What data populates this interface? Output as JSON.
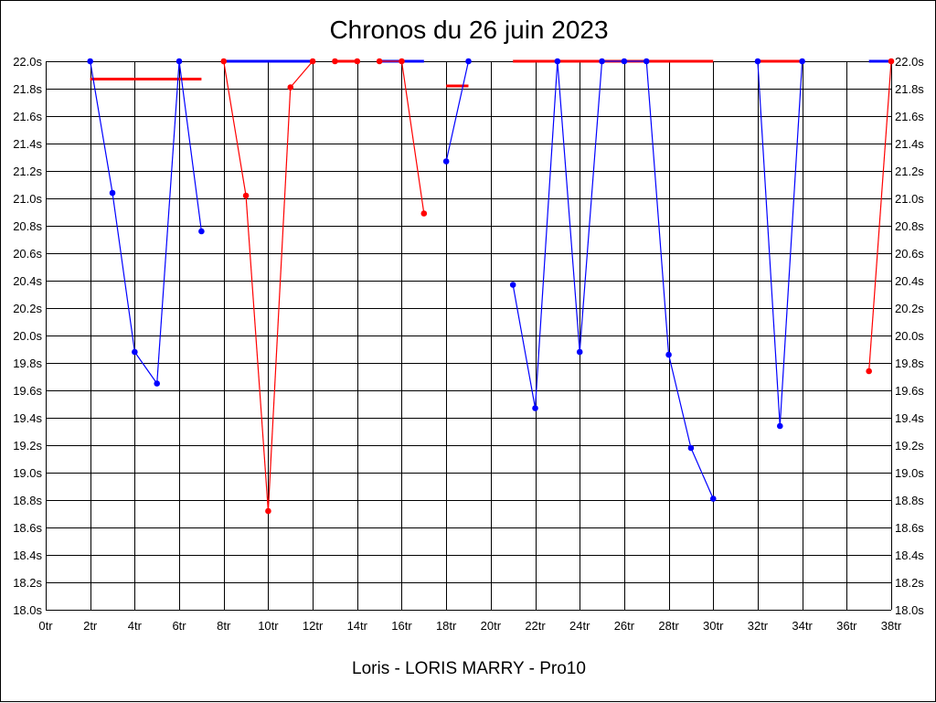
{
  "chart_data": {
    "type": "line",
    "title": "Chronos du 26 juin 2023",
    "xlabel": "",
    "ylabel": "",
    "caption": "Loris - LORIS MARRY - Pro10",
    "xlim": [
      0,
      38
    ],
    "ylim": [
      18.0,
      22.0
    ],
    "grid": true,
    "x_ticks": [
      "0tr",
      "2tr",
      "4tr",
      "6tr",
      "8tr",
      "10tr",
      "12tr",
      "14tr",
      "16tr",
      "18tr",
      "20tr",
      "22tr",
      "24tr",
      "26tr",
      "28tr",
      "30tr",
      "32tr",
      "34tr",
      "36tr",
      "38tr"
    ],
    "y_ticks": [
      "18.0s",
      "18.2s",
      "18.4s",
      "18.6s",
      "18.8s",
      "19.0s",
      "19.2s",
      "19.4s",
      "19.6s",
      "19.8s",
      "20.0s",
      "20.2s",
      "20.4s",
      "20.6s",
      "20.8s",
      "21.0s",
      "21.2s",
      "21.4s",
      "21.6s",
      "21.8s",
      "22.0s"
    ],
    "colors": {
      "blue": "#0000ff",
      "red": "#ff0000"
    },
    "segments": [
      {
        "color": "blue",
        "points": [
          [
            2,
            22.0
          ],
          [
            3,
            21.04
          ],
          [
            4,
            19.88
          ],
          [
            5,
            19.65
          ],
          [
            6,
            22.0
          ],
          [
            7,
            20.76
          ]
        ]
      },
      {
        "color": "red",
        "points": [
          [
            8,
            22.0
          ],
          [
            9,
            21.02
          ],
          [
            10,
            18.72
          ],
          [
            11,
            21.81
          ],
          [
            12,
            22.0
          ]
        ]
      },
      {
        "color": "red",
        "points": [
          [
            13,
            22.0
          ],
          [
            14,
            22.0
          ]
        ]
      },
      {
        "color": "red",
        "points": [
          [
            15,
            22.0
          ],
          [
            16,
            22.0
          ],
          [
            17,
            20.89
          ]
        ]
      },
      {
        "color": "blue",
        "points": [
          [
            18,
            21.27
          ],
          [
            19,
            22.0
          ]
        ]
      },
      {
        "color": "blue",
        "points": [
          [
            21,
            20.37
          ],
          [
            22,
            19.47
          ],
          [
            23,
            22.0
          ],
          [
            24,
            19.88
          ],
          [
            25,
            22.0
          ],
          [
            26,
            22.0
          ],
          [
            27,
            22.0
          ],
          [
            28,
            19.86
          ],
          [
            29,
            19.18
          ],
          [
            30,
            18.81
          ]
        ]
      },
      {
        "color": "blue",
        "points": [
          [
            32,
            22.0
          ],
          [
            33,
            19.34
          ],
          [
            34,
            22.0
          ]
        ]
      },
      {
        "color": "red",
        "points": [
          [
            37,
            19.74
          ],
          [
            38,
            22.0
          ]
        ]
      }
    ],
    "reference_lines": [
      {
        "color": "red",
        "from": 2,
        "to": 7,
        "value": 21.87
      },
      {
        "color": "blue",
        "from": 8,
        "to": 12,
        "value": 22.0
      },
      {
        "color": "red",
        "from": 13,
        "to": 14,
        "value": 22.0
      },
      {
        "color": "blue",
        "from": 15,
        "to": 17,
        "value": 22.0
      },
      {
        "color": "red",
        "from": 18,
        "to": 19,
        "value": 21.82
      },
      {
        "color": "red",
        "from": 21,
        "to": 30,
        "value": 22.0
      },
      {
        "color": "red",
        "from": 32,
        "to": 34,
        "value": 22.0
      },
      {
        "color": "blue",
        "from": 37,
        "to": 38,
        "value": 22.0
      }
    ]
  }
}
